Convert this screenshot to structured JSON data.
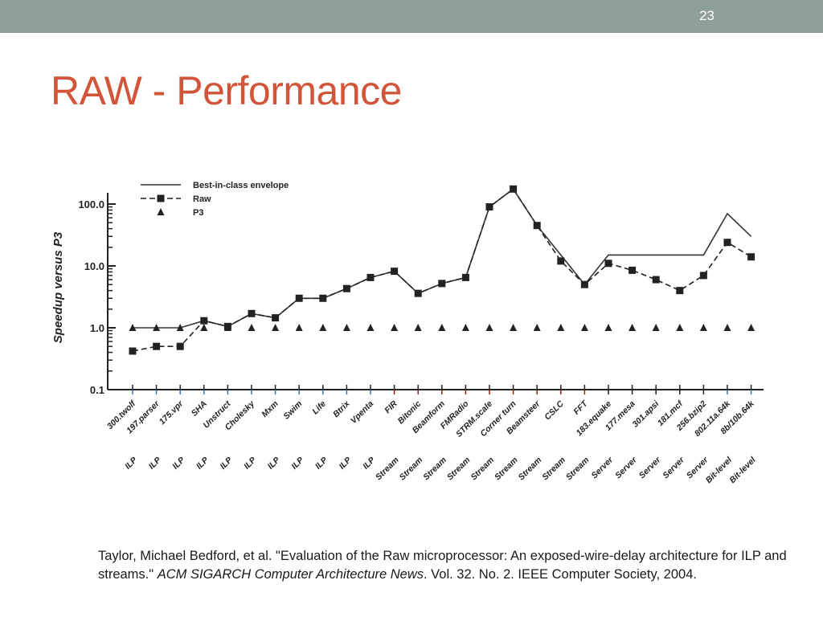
{
  "slide": {
    "number": "23",
    "title": "RAW - Performance"
  },
  "citation": {
    "part1": "Taylor, Michael Bedford, et al. \"Evaluation of the Raw microprocessor: An exposed-wire-delay architecture for ILP and streams.\" ",
    "journal": "ACM SIGARCH Computer Architecture News",
    "part2": ". Vol. 32. No. 2. IEEE Computer Society, 2004."
  },
  "colors": {
    "top_bar": "#8f9f9a",
    "title": "#d2553a",
    "line": "#222222"
  },
  "chart_data": {
    "type": "line",
    "ylabel": "Speedup versus P3",
    "yscale": "log",
    "ylim": [
      0.1,
      150
    ],
    "yticks": [
      "100.0",
      "10.0",
      "1.0",
      "0.1"
    ],
    "ytick_values": [
      100,
      10,
      1,
      0.1
    ],
    "legend_position": "top-left",
    "legend": [
      "Best-in-class envelope",
      "Raw",
      "P3"
    ],
    "categories": [
      "300.twolf",
      "197.parser",
      "175.vpr",
      "SHA",
      "Unstruct",
      "Cholesky",
      "Mxm",
      "Swim",
      "Life",
      "Btrix",
      "Vpenta",
      "FIR",
      "Bitonic",
      "Beamform",
      "FMRadio",
      "STRM.scale",
      "Corner turn",
      "Beamsteer",
      "CSLC",
      "FFT",
      "183.equake",
      "177.mesa",
      "301.apsi",
      "181.mcf",
      "256.bzip2",
      "802.11a.64k",
      "8b/10b.64k"
    ],
    "groups": [
      "ILP",
      "ILP",
      "ILP",
      "ILP",
      "ILP",
      "ILP",
      "ILP",
      "ILP",
      "ILP",
      "ILP",
      "ILP",
      "Stream",
      "Stream",
      "Stream",
      "Stream",
      "Stream",
      "Stream",
      "Stream",
      "Stream",
      "Stream",
      "Server",
      "Server",
      "Server",
      "Server",
      "Server",
      "Bit-level",
      "Bit-level"
    ],
    "series": [
      {
        "name": "Best-in-class envelope",
        "style": "solid",
        "values": [
          1.0,
          1.0,
          1.0,
          1.3,
          1.05,
          1.7,
          1.45,
          3.0,
          3.0,
          4.3,
          6.5,
          8.2,
          3.6,
          5.2,
          6.5,
          90,
          175,
          45,
          15,
          5.0,
          15,
          15,
          15,
          15,
          15,
          70,
          30
        ]
      },
      {
        "name": "Raw",
        "style": "dashed",
        "marker": "square",
        "values": [
          0.42,
          0.5,
          0.5,
          1.3,
          1.05,
          1.7,
          1.45,
          3.0,
          3.0,
          4.3,
          6.5,
          8.2,
          3.6,
          5.2,
          6.5,
          90,
          175,
          45,
          12,
          5.0,
          11,
          8.5,
          6.0,
          4.0,
          7.0,
          24,
          14
        ]
      },
      {
        "name": "P3",
        "marker": "triangle",
        "values": [
          1,
          1,
          1,
          1,
          1,
          1,
          1,
          1,
          1,
          1,
          1,
          1,
          1,
          1,
          1,
          1,
          1,
          1,
          1,
          1,
          1,
          1,
          1,
          1,
          1,
          1,
          1
        ]
      }
    ]
  }
}
